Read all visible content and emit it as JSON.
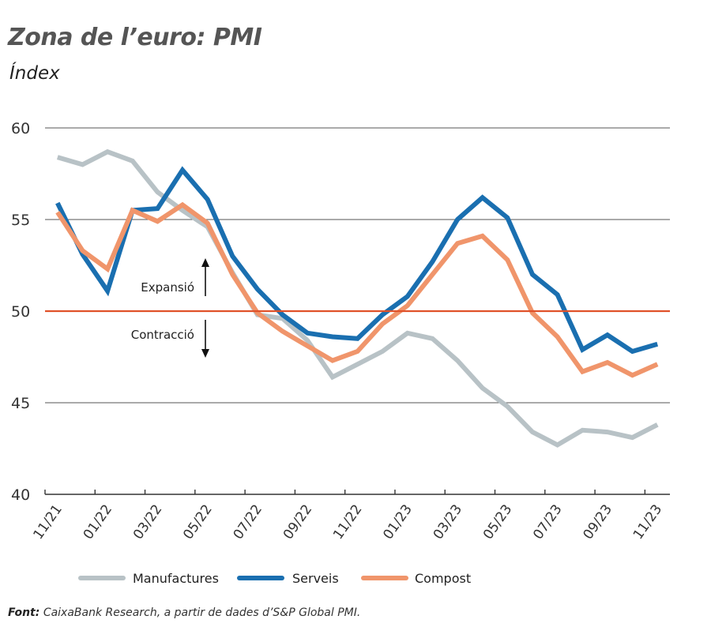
{
  "header": {
    "title": "Zona de l’euro: PMI",
    "subtitle": "Índex"
  },
  "source": {
    "label": "Font:",
    "text": "CaixaBank Research, a partir de dades d’S&P Global PMI."
  },
  "chart_data": {
    "type": "line",
    "title": "Zona de l’euro: PMI",
    "subtitle": "Índex",
    "xlabel": "",
    "ylabel": "Índex",
    "ylim": [
      40,
      60
    ],
    "yticks": [
      40,
      45,
      50,
      55,
      60
    ],
    "grid": true,
    "legend": "bottom",
    "x": [
      "11/21",
      "12/21",
      "01/22",
      "02/22",
      "03/22",
      "04/22",
      "05/22",
      "06/22",
      "07/22",
      "08/22",
      "09/22",
      "10/22",
      "11/22",
      "12/22",
      "01/23",
      "02/23",
      "03/23",
      "04/23",
      "05/23",
      "06/23",
      "07/23",
      "08/23",
      "09/23",
      "10/23",
      "11/23"
    ],
    "xtick_labels": [
      "11/21",
      "01/22",
      "03/22",
      "05/22",
      "07/22",
      "09/22",
      "11/22",
      "01/23",
      "03/23",
      "05/23",
      "07/23",
      "09/23",
      "11/23"
    ],
    "reference_line": {
      "value": 50,
      "color": "#e0522a"
    },
    "annotations": [
      {
        "text": "Expansió",
        "direction": "up"
      },
      {
        "text": "Contracció",
        "direction": "down"
      }
    ],
    "series": [
      {
        "name": "Manufactures",
        "color": "#b8c2c6",
        "values": [
          58.4,
          58.0,
          58.7,
          58.2,
          56.5,
          55.5,
          54.6,
          52.1,
          49.8,
          49.6,
          48.4,
          46.4,
          47.1,
          47.8,
          48.8,
          48.5,
          47.3,
          45.8,
          44.8,
          43.4,
          42.7,
          43.5,
          43.4,
          43.1,
          43.8
        ]
      },
      {
        "name": "Serveis",
        "color": "#1a6fb0",
        "values": [
          55.9,
          53.1,
          51.1,
          55.5,
          55.6,
          57.7,
          56.1,
          53.0,
          51.2,
          49.8,
          48.8,
          48.6,
          48.5,
          49.8,
          50.8,
          52.7,
          55.0,
          56.2,
          55.1,
          52.0,
          50.9,
          47.9,
          48.7,
          47.8,
          48.2
        ]
      },
      {
        "name": "Compost",
        "color": "#f0956b",
        "values": [
          55.4,
          53.3,
          52.3,
          55.5,
          54.9,
          55.8,
          54.8,
          52.0,
          49.9,
          48.9,
          48.1,
          47.3,
          47.8,
          49.3,
          50.3,
          52.0,
          53.7,
          54.1,
          52.8,
          49.9,
          48.6,
          46.7,
          47.2,
          46.5,
          47.1
        ]
      }
    ]
  }
}
